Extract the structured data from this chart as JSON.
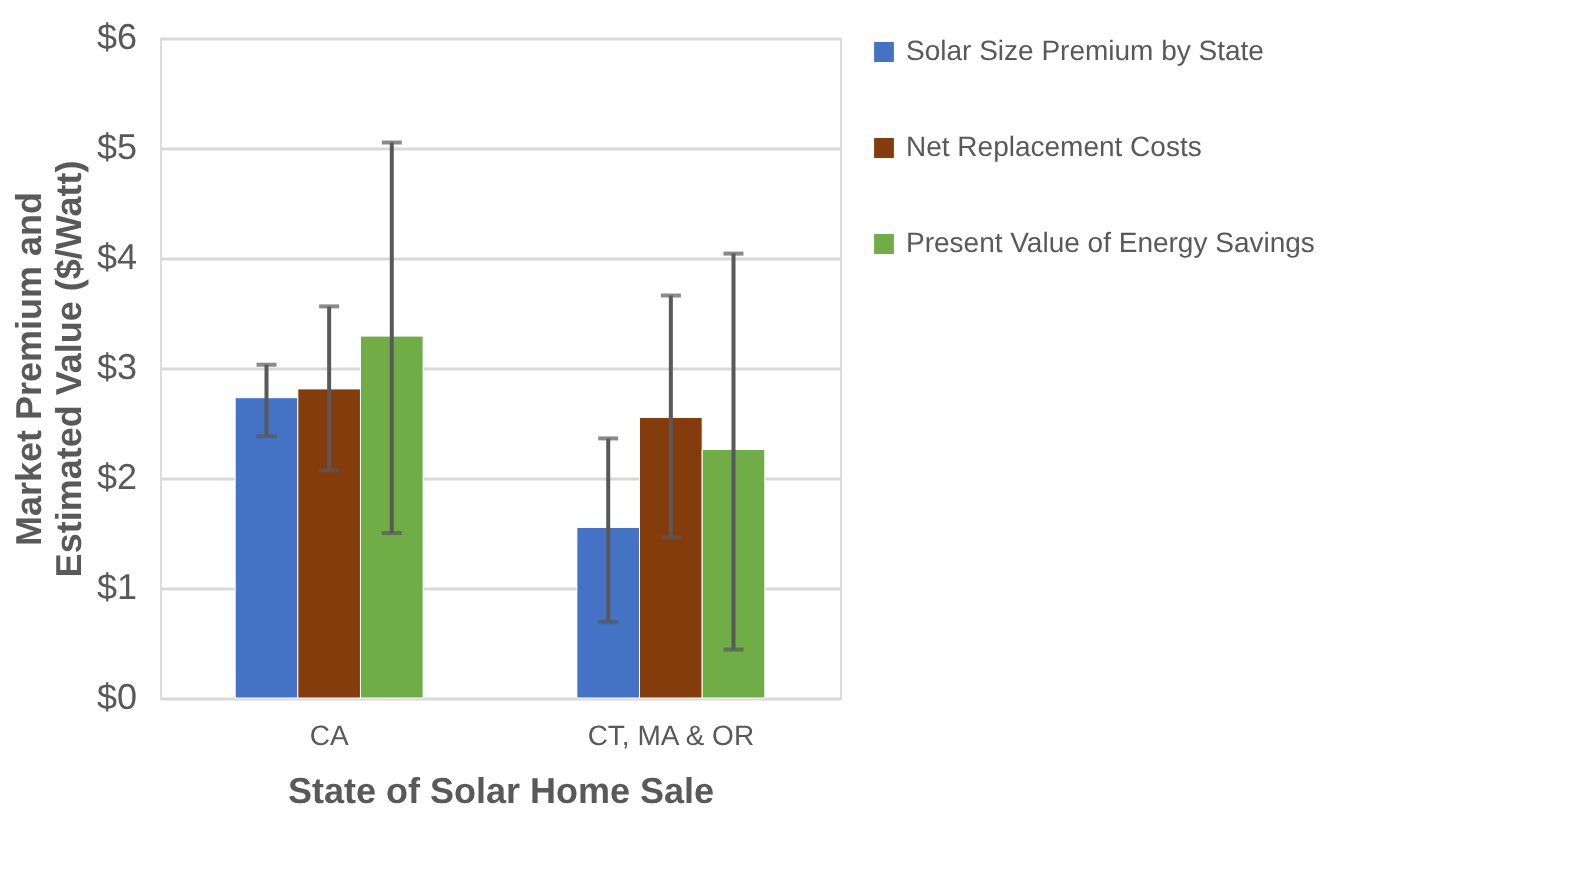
{
  "chart_data": {
    "type": "bar",
    "xlabel": "State of Solar Home Sale",
    "ylabel": "Market Premium and Estimated Value ($/Watt)",
    "categories": [
      "CA",
      "CT, MA & OR"
    ],
    "series": [
      {
        "name": "Solar Size Premium by State",
        "color": "#4472c4",
        "values": [
          2.73,
          1.55
        ],
        "errors": [
          [
            2.38,
            3.03
          ],
          [
            0.69,
            2.36
          ]
        ]
      },
      {
        "name": "Net Replacement Costs",
        "color": "#843c0c",
        "values": [
          2.81,
          2.55
        ],
        "errors": [
          [
            2.07,
            3.56
          ],
          [
            1.46,
            3.66
          ]
        ]
      },
      {
        "name": "Present Value of Energy Savings",
        "color": "#70ad47",
        "values": [
          3.29,
          2.26
        ],
        "errors": [
          [
            1.5,
            5.05
          ],
          [
            0.44,
            4.04
          ]
        ]
      }
    ],
    "ylim": [
      0,
      6
    ],
    "yticks": [
      {
        "value": 0,
        "label": "$0"
      },
      {
        "value": 1,
        "label": "$1"
      },
      {
        "value": 2,
        "label": "$2"
      },
      {
        "value": 3,
        "label": "$3"
      },
      {
        "value": 4,
        "label": "$4"
      },
      {
        "value": 5,
        "label": "$5"
      },
      {
        "value": 6,
        "label": "$6"
      }
    ],
    "grid": "y",
    "legend": "right"
  }
}
